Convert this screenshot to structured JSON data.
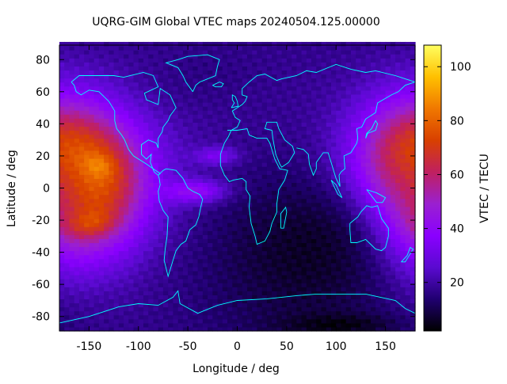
{
  "chart_data": {
    "type": "heatmap",
    "title": "UQRG-GIM Global VTEC maps 20240504.125.00000",
    "xlabel": "Longitude / deg",
    "ylabel": "Latitude / deg",
    "xlim": [
      -180,
      180
    ],
    "ylim": [
      -89,
      89
    ],
    "xticks": [
      -150,
      -100,
      -50,
      0,
      50,
      100,
      150
    ],
    "yticks": [
      80,
      60,
      40,
      20,
      0,
      -20,
      -40,
      -60,
      -80
    ],
    "colorbar": {
      "label": "VTEC / TECU",
      "range": [
        2,
        108
      ],
      "ticks": [
        100,
        80,
        60,
        40,
        20
      ],
      "colormap": [
        "#000000",
        "#200070",
        "#5a0ad0",
        "#8a00ff",
        "#9a20d0",
        "#c02060",
        "#d84000",
        "#f07800",
        "#ffc000",
        "#ffff60"
      ]
    },
    "background_level": 22,
    "features": [
      {
        "kind": "peak",
        "lon": -170,
        "lat": 5,
        "rx": 50,
        "ry": 28,
        "value": 100
      },
      {
        "kind": "peak",
        "lon": -148,
        "lat": 13,
        "rx": 12,
        "ry": 5,
        "value": 108
      },
      {
        "kind": "peak",
        "lon": -160,
        "lat": -20,
        "rx": 18,
        "ry": 6,
        "value": 108
      },
      {
        "kind": "peak",
        "lon": 180,
        "lat": 0,
        "rx": 35,
        "ry": 30,
        "value": 85
      },
      {
        "kind": "peak",
        "lon": -40,
        "lat": -2,
        "rx": 22,
        "ry": 5,
        "value": 55
      },
      {
        "kind": "peak",
        "lon": -20,
        "lat": 20,
        "rx": 15,
        "ry": 4,
        "value": 42
      },
      {
        "kind": "trough",
        "lon": 70,
        "lat": -40,
        "rx": 80,
        "ry": 45,
        "value": 6
      },
      {
        "kind": "trough",
        "lon": 100,
        "lat": -85,
        "rx": 40,
        "ry": 5,
        "value": 3
      },
      {
        "kind": "trough",
        "lon": -30,
        "lat": 70,
        "rx": 40,
        "ry": 15,
        "value": 16
      }
    ],
    "coastline_color": "#00ffff"
  }
}
